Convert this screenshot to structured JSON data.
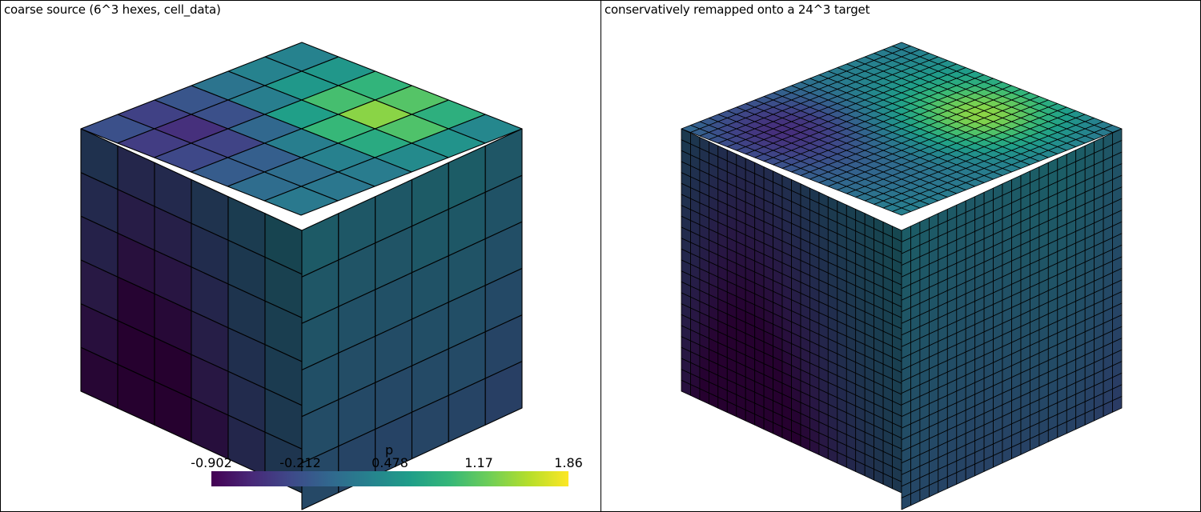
{
  "left_panel": {
    "title": "coarse source (6^3 hexes, cell_data)",
    "resolution": 6
  },
  "right_panel": {
    "title": "conservatively remapped onto a 24^3 target",
    "resolution": 24
  },
  "scalar_bar": {
    "title": "p",
    "tick_labels": [
      "-0.902",
      "-0.212",
      "0.478",
      "1.17",
      "1.86"
    ],
    "min": -0.902,
    "max": 1.86,
    "colormap": "viridis",
    "colormap_stops": [
      "#440154",
      "#482878",
      "#3e4989",
      "#31688e",
      "#26828e",
      "#1f9e89",
      "#35b779",
      "#6ece58",
      "#b5de2b",
      "#fde725"
    ]
  },
  "colors": {
    "background": "#ffffff",
    "cell_edge": "#000000"
  }
}
